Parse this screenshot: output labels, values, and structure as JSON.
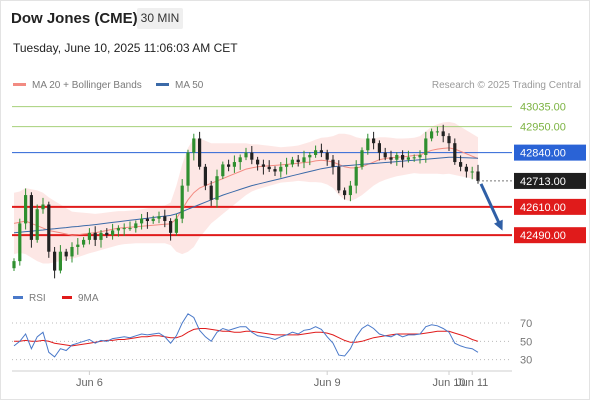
{
  "header": {
    "title": "Dow Jones (CME)",
    "timeframe": "30 MIN"
  },
  "timestamp": "Tuesday, June 10, 2025 11:06:03 AM CET",
  "legend": {
    "ma20": {
      "label": "MA 20 + Bollinger Bands",
      "color": "#f28b82"
    },
    "ma50": {
      "label": "MA 50",
      "color": "#3b6aa8"
    }
  },
  "copyright": "Research © 2025 Trading Central",
  "chart_data": {
    "type": "candlestick",
    "price_range": [
      42300,
      43080
    ],
    "last_price": "42713.00",
    "levels": [
      {
        "label": "43035.00",
        "value": 43035,
        "kind": "resistance",
        "color": "#a6d07a"
      },
      {
        "label": "42950.00",
        "value": 42950,
        "kind": "resistance",
        "color": "#a6d07a"
      },
      {
        "label": "42840.00",
        "value": 42840,
        "kind": "pivot",
        "color": "#2a63d6"
      },
      {
        "label": "42610.00",
        "value": 42610,
        "kind": "support",
        "color": "#e01b1b"
      },
      {
        "label": "42490.00",
        "value": 42490,
        "kind": "support",
        "color": "#e01b1b"
      }
    ],
    "x_ticks": [
      "Jun 6",
      "Jun 9",
      "Jun 10",
      "Jun 11"
    ],
    "closes": [
      42380,
      42540,
      42660,
      42470,
      42600,
      42620,
      42420,
      42340,
      42420,
      42400,
      42440,
      42450,
      42470,
      42500,
      42470,
      42500,
      42490,
      42510,
      42520,
      42520,
      42520,
      42540,
      42560,
      42550,
      42560,
      42570,
      42550,
      42500,
      42560,
      42700,
      42840,
      42900,
      42780,
      42700,
      42640,
      42740,
      42790,
      42780,
      42800,
      42820,
      42840,
      42810,
      42790,
      42780,
      42770,
      42760,
      42780,
      42790,
      42810,
      42800,
      42820,
      42830,
      42850,
      42840,
      42810,
      42780,
      42680,
      42660,
      42700,
      42780,
      42850,
      42900,
      42880,
      42840,
      42820,
      42810,
      42830,
      42810,
      42820,
      42820,
      42830,
      42900,
      42930,
      42930,
      42910,
      42880,
      42800,
      42780,
      42760,
      42760,
      42720
    ],
    "ma20": [
      42540,
      42545,
      42550,
      42540,
      42530,
      42520,
      42510,
      42505,
      42500,
      42495,
      42490,
      42492,
      42495,
      42498,
      42500,
      42505,
      42510,
      42515,
      42520,
      42522,
      42524,
      42526,
      42528,
      42530,
      42532,
      42534,
      42536,
      42538,
      42560,
      42600,
      42640,
      42670,
      42690,
      42700,
      42710,
      42720,
      42730,
      42740,
      42750,
      42760,
      42770,
      42775,
      42780,
      42782,
      42784,
      42786,
      42788,
      42790,
      42792,
      42795,
      42798,
      42800,
      42805,
      42808,
      42805,
      42800,
      42790,
      42780,
      42775,
      42775,
      42780,
      42790,
      42800,
      42810,
      42815,
      42818,
      42820,
      42822,
      42825,
      42828,
      42830,
      42840,
      42850,
      42855,
      42858,
      42860,
      42855,
      42845,
      42835,
      42825,
      42815
    ],
    "ma50": [
      42500,
      42502,
      42505,
      42507,
      42510,
      42512,
      42515,
      42517,
      42520,
      42522,
      42525,
      42527,
      42530,
      42532,
      42535,
      42538,
      42541,
      42544,
      42547,
      42550,
      42553,
      42556,
      42559,
      42562,
      42565,
      42568,
      42571,
      42574,
      42580,
      42590,
      42600,
      42610,
      42620,
      42630,
      42640,
      42650,
      42660,
      42668,
      42676,
      42684,
      42692,
      42700,
      42706,
      42712,
      42718,
      42724,
      42730,
      42736,
      42742,
      42748,
      42754,
      42760,
      42766,
      42772,
      42776,
      42780,
      42782,
      42784,
      42786,
      42788,
      42790,
      42792,
      42794,
      42796,
      42798,
      42800,
      42802,
      42804,
      42806,
      42808,
      42810,
      42812,
      42814,
      42816,
      42818,
      42820,
      42820,
      42819,
      42818,
      42817,
      42816
    ],
    "bb_halfwidth": [
      130,
      130,
      140,
      145,
      150,
      150,
      140,
      130,
      120,
      110,
      100,
      95,
      90,
      85,
      80,
      78,
      76,
      74,
      72,
      70,
      70,
      70,
      72,
      74,
      76,
      78,
      80,
      90,
      140,
      190,
      220,
      230,
      210,
      190,
      170,
      160,
      150,
      140,
      130,
      120,
      110,
      100,
      95,
      90,
      85,
      80,
      75,
      75,
      75,
      75,
      80,
      85,
      90,
      95,
      100,
      110,
      130,
      140,
      140,
      130,
      120,
      110,
      100,
      95,
      90,
      85,
      80,
      78,
      76,
      75,
      80,
      90,
      100,
      105,
      110,
      110,
      110,
      105,
      100,
      95,
      90
    ],
    "indicators": {
      "legend": [
        {
          "label": "RSI",
          "color": "#4a79c9"
        },
        {
          "label": "9MA",
          "color": "#e01b1b"
        }
      ],
      "y_ticks": [
        "70",
        "50",
        "30"
      ],
      "y_values": [
        70,
        50,
        30
      ],
      "range": [
        22,
        82
      ],
      "rsi": [
        45,
        50,
        58,
        42,
        55,
        60,
        38,
        33,
        42,
        40,
        46,
        48,
        50,
        52,
        48,
        51,
        50,
        53,
        54,
        55,
        54,
        56,
        58,
        57,
        58,
        59,
        55,
        48,
        56,
        70,
        80,
        76,
        62,
        55,
        50,
        60,
        64,
        62,
        64,
        66,
        66,
        60,
        56,
        55,
        54,
        52,
        55,
        57,
        60,
        58,
        62,
        63,
        66,
        63,
        55,
        48,
        35,
        34,
        42,
        55,
        64,
        68,
        64,
        58,
        56,
        55,
        58,
        55,
        57,
        57,
        58,
        66,
        68,
        67,
        64,
        60,
        48,
        45,
        43,
        42,
        38
      ],
      "ma9": [
        50,
        50,
        51,
        50,
        50,
        51,
        50,
        48,
        47,
        46,
        45,
        46,
        47,
        48,
        49,
        50,
        51,
        51,
        52,
        52,
        53,
        54,
        55,
        55,
        56,
        56,
        55,
        54,
        54,
        56,
        60,
        63,
        64,
        64,
        63,
        62,
        61,
        61,
        60,
        60,
        61,
        61,
        60,
        59,
        58,
        57,
        57,
        57,
        57,
        57,
        58,
        59,
        60,
        60,
        59,
        57,
        54,
        51,
        49,
        49,
        50,
        52,
        54,
        55,
        56,
        57,
        58,
        58,
        58,
        58,
        58,
        59,
        60,
        61,
        61,
        61,
        59,
        57,
        55,
        52,
        50
      ]
    }
  }
}
